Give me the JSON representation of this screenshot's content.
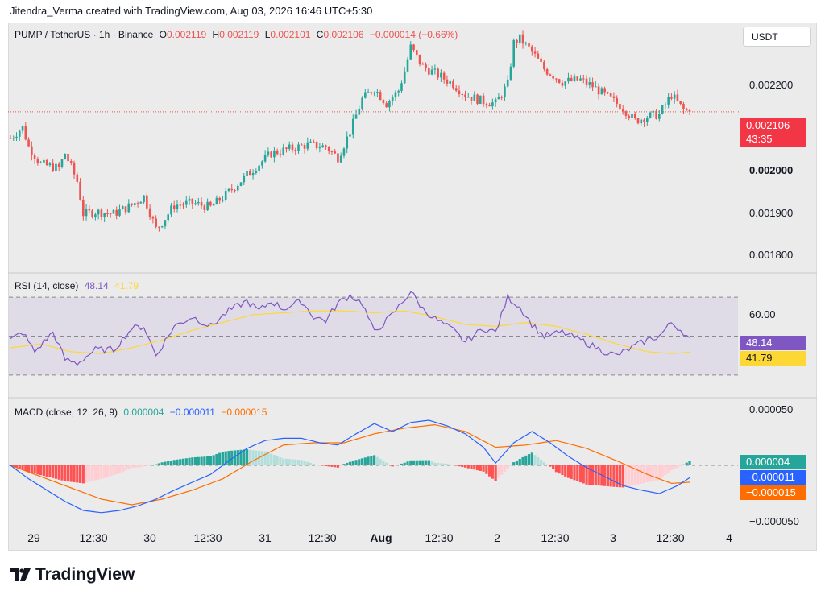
{
  "header": {
    "credit": "Jitendra_Verma created with TradingView.com, Aug 03, 2026 16:46 UTC+5:30"
  },
  "main_pane": {
    "symbol": "PUMP / TetherUS · 1h · Binance",
    "o_label": "O",
    "o_value": "0.002119",
    "h_label": "H",
    "h_value": "0.002119",
    "l_label": "L",
    "l_value": "0.002101",
    "c_label": "C",
    "c_value": "0.002106",
    "change": "−0.000014 (−0.66%)",
    "currency_button": "USDT",
    "price_ticks": [
      "0.002200",
      "0.002000",
      "0.001900",
      "0.001800"
    ],
    "current_price": "0.002106",
    "countdown": "43:35"
  },
  "rsi_pane": {
    "label": "RSI (14, close)",
    "rsi_value": "48.14",
    "ma_value": "41.79",
    "tick": "60.00",
    "badge_rsi": "48.14",
    "badge_ma": "41.79"
  },
  "macd_pane": {
    "label": "MACD (close, 12, 26, 9)",
    "hist_value": "0.000004",
    "macd_value": "−0.000011",
    "signal_value": "−0.000015",
    "tick_top": "0.000050",
    "tick_bottom": "−0.000050",
    "badge_hist": "0.000004",
    "badge_macd": "−0.000011",
    "badge_signal": "−0.000015"
  },
  "x_axis": {
    "labels": [
      {
        "text": "29",
        "bold": false
      },
      {
        "text": "12:30",
        "bold": false
      },
      {
        "text": "30",
        "bold": false
      },
      {
        "text": "12:30",
        "bold": false
      },
      {
        "text": "31",
        "bold": false
      },
      {
        "text": "12:30",
        "bold": false
      },
      {
        "text": "Aug",
        "bold": true
      },
      {
        "text": "12:30",
        "bold": false
      },
      {
        "text": "2",
        "bold": false
      },
      {
        "text": "12:30",
        "bold": false
      },
      {
        "text": "3",
        "bold": false
      },
      {
        "text": "12:30",
        "bold": false
      },
      {
        "text": "4",
        "bold": false
      }
    ]
  },
  "footer": {
    "brand": "TradingView"
  },
  "colors": {
    "up": "#26a69a",
    "down": "#ef5350",
    "rsi": "#7e57c2",
    "rsi_ma": "#fdd835",
    "macd": "#2962ff",
    "signal": "#ff6d00",
    "hist_up": "#26a69a",
    "hist_up_fading": "#b2dfdb",
    "hist_down": "#ff5252",
    "hist_down_fading": "#ffcdd2"
  },
  "chart_data": [
    {
      "type": "candlestick",
      "title": "PUMP / TetherUS · 1h · Binance",
      "ylim": [
        0.00175,
        0.00229
      ],
      "ticks": [
        "29",
        "12:30",
        "30",
        "12:30",
        "31",
        "12:30",
        "Aug",
        "12:30",
        "2",
        "12:30",
        "3",
        "12:30",
        "4"
      ],
      "knots": [
        [
          0,
          0.002045
        ],
        [
          4,
          0.00207
        ],
        [
          6,
          0.002025
        ],
        [
          10,
          0.001985
        ],
        [
          16,
          0.001975
        ],
        [
          18,
          0.00201
        ],
        [
          22,
          0.001945
        ],
        [
          24,
          0.00187
        ],
        [
          28,
          0.001875
        ],
        [
          34,
          0.00187
        ],
        [
          40,
          0.00189
        ],
        [
          44,
          0.00191
        ],
        [
          48,
          0.001835
        ],
        [
          50,
          0.00185
        ],
        [
          54,
          0.00189
        ],
        [
          60,
          0.001895
        ],
        [
          66,
          0.001885
        ],
        [
          72,
          0.00192
        ],
        [
          78,
          0.00196
        ],
        [
          82,
          0.001985
        ],
        [
          86,
          0.00201
        ],
        [
          92,
          0.00202
        ],
        [
          98,
          0.00203
        ],
        [
          104,
          0.002025
        ],
        [
          108,
          0.002
        ],
        [
          112,
          0.00206
        ],
        [
          116,
          0.002135
        ],
        [
          120,
          0.00216
        ],
        [
          124,
          0.002125
        ],
        [
          128,
          0.002155
        ],
        [
          130,
          0.0022
        ],
        [
          132,
          0.002255
        ],
        [
          136,
          0.00221
        ],
        [
          140,
          0.002195
        ],
        [
          146,
          0.00217
        ],
        [
          150,
          0.002145
        ],
        [
          156,
          0.00213
        ],
        [
          160,
          0.002125
        ],
        [
          164,
          0.00217
        ],
        [
          166,
          0.002265
        ],
        [
          168,
          0.002275
        ],
        [
          172,
          0.002245
        ],
        [
          176,
          0.002205
        ],
        [
          182,
          0.002175
        ],
        [
          188,
          0.00218
        ],
        [
          192,
          0.002165
        ],
        [
          196,
          0.002145
        ],
        [
          202,
          0.002115
        ],
        [
          206,
          0.002085
        ],
        [
          210,
          0.002095
        ],
        [
          214,
          0.0021
        ],
        [
          218,
          0.002145
        ],
        [
          222,
          0.00211
        ],
        [
          224,
          0.002106
        ]
      ],
      "last_close": 0.002106
    },
    {
      "type": "line",
      "title": "RSI (14, close)",
      "ylim": [
        20,
        80
      ],
      "bands": [
        70,
        50,
        30
      ],
      "series": [
        {
          "name": "RSI",
          "knots": [
            [
              0,
              48
            ],
            [
              4,
              52
            ],
            [
              8,
              42
            ],
            [
              14,
              52
            ],
            [
              18,
              38
            ],
            [
              22,
              36
            ],
            [
              28,
              43
            ],
            [
              34,
              43
            ],
            [
              40,
              54
            ],
            [
              44,
              55
            ],
            [
              48,
              40
            ],
            [
              54,
              55
            ],
            [
              60,
              60
            ],
            [
              66,
              55
            ],
            [
              72,
              63
            ],
            [
              78,
              68
            ],
            [
              82,
              63
            ],
            [
              86,
              68
            ],
            [
              90,
              64
            ],
            [
              96,
              68
            ],
            [
              100,
              60
            ],
            [
              104,
              58
            ],
            [
              108,
              67
            ],
            [
              112,
              71
            ],
            [
              116,
              67
            ],
            [
              120,
              52
            ],
            [
              126,
              61
            ],
            [
              132,
              73
            ],
            [
              136,
              64
            ],
            [
              140,
              59
            ],
            [
              146,
              53
            ],
            [
              150,
              47
            ],
            [
              156,
              54
            ],
            [
              160,
              52
            ],
            [
              164,
              70
            ],
            [
              168,
              65
            ],
            [
              172,
              56
            ],
            [
              176,
              50
            ],
            [
              182,
              52
            ],
            [
              188,
              48
            ],
            [
              192,
              45
            ],
            [
              196,
              42
            ],
            [
              200,
              40
            ],
            [
              206,
              45
            ],
            [
              210,
              48
            ],
            [
              214,
              50
            ],
            [
              218,
              57
            ],
            [
              222,
              52
            ],
            [
              224,
              48.14
            ]
          ]
        },
        {
          "name": "RSI-based MA",
          "knots": [
            [
              0,
              44
            ],
            [
              10,
              46
            ],
            [
              20,
              42
            ],
            [
              30,
              41
            ],
            [
              40,
              44
            ],
            [
              50,
              48
            ],
            [
              60,
              53
            ],
            [
              70,
              57
            ],
            [
              80,
              61
            ],
            [
              90,
              62
            ],
            [
              100,
              63
            ],
            [
              110,
              63
            ],
            [
              120,
              62
            ],
            [
              130,
              63
            ],
            [
              140,
              60
            ],
            [
              150,
              56
            ],
            [
              160,
              55
            ],
            [
              170,
              57
            ],
            [
              180,
              55
            ],
            [
              190,
              51
            ],
            [
              200,
              46
            ],
            [
              210,
              42
            ],
            [
              218,
              41
            ],
            [
              224,
              41.79
            ]
          ]
        }
      ]
    },
    {
      "type": "bar",
      "title": "MACD (close, 12, 26, 9)",
      "ylim": [
        -5e-05,
        5e-05
      ],
      "series": [
        {
          "name": "MACD",
          "knots": [
            [
              0,
              0
            ],
            [
              6,
              -1.2e-05
            ],
            [
              12,
              -2.2e-05
            ],
            [
              18,
              -3.2e-05
            ],
            [
              24,
              -4e-05
            ],
            [
              30,
              -4.2e-05
            ],
            [
              36,
              -4e-05
            ],
            [
              42,
              -3.6e-05
            ],
            [
              48,
              -3e-05
            ],
            [
              54,
              -2.2e-05
            ],
            [
              60,
              -1.5e-05
            ],
            [
              66,
              -8e-06
            ],
            [
              72,
              4e-06
            ],
            [
              78,
              1.5e-05
            ],
            [
              84,
              2.2e-05
            ],
            [
              90,
              2.4e-05
            ],
            [
              96,
              2.4e-05
            ],
            [
              102,
              2e-05
            ],
            [
              108,
              1.8e-05
            ],
            [
              114,
              2.8e-05
            ],
            [
              120,
              3.7e-05
            ],
            [
              126,
              3e-05
            ],
            [
              132,
              3.8e-05
            ],
            [
              138,
              4e-05
            ],
            [
              144,
              3.5e-05
            ],
            [
              150,
              2.8e-05
            ],
            [
              156,
              1.6e-05
            ],
            [
              160,
              2e-06
            ],
            [
              166,
              2e-05
            ],
            [
              172,
              3e-05
            ],
            [
              178,
              2e-05
            ],
            [
              184,
              8e-06
            ],
            [
              190,
              -2e-06
            ],
            [
              196,
              -1e-05
            ],
            [
              202,
              -1.8e-05
            ],
            [
              208,
              -2.2e-05
            ],
            [
              214,
              -2.5e-05
            ],
            [
              220,
              -1.8e-05
            ],
            [
              224,
              -1.1e-05
            ]
          ]
        },
        {
          "name": "Signal",
          "knots": [
            [
              0,
              0
            ],
            [
              10,
              -1e-05
            ],
            [
              20,
              -2e-05
            ],
            [
              30,
              -3e-05
            ],
            [
              40,
              -3.5e-05
            ],
            [
              50,
              -3e-05
            ],
            [
              60,
              -2.2e-05
            ],
            [
              70,
              -1.2e-05
            ],
            [
              80,
              4e-06
            ],
            [
              90,
              1.8e-05
            ],
            [
              100,
              2e-05
            ],
            [
              110,
              2e-05
            ],
            [
              120,
              2.8e-05
            ],
            [
              130,
              3.3e-05
            ],
            [
              140,
              3.6e-05
            ],
            [
              150,
              3e-05
            ],
            [
              160,
              1.6e-05
            ],
            [
              170,
              1.8e-05
            ],
            [
              180,
              2.2e-05
            ],
            [
              190,
              1.5e-05
            ],
            [
              200,
              4e-06
            ],
            [
              210,
              -8e-06
            ],
            [
              218,
              -1.6e-05
            ],
            [
              224,
              -1.5e-05
            ]
          ]
        }
      ]
    }
  ]
}
